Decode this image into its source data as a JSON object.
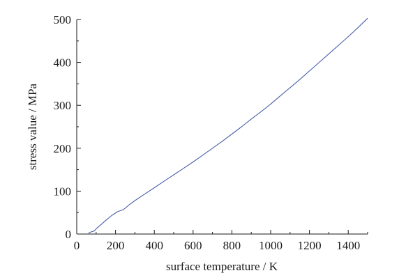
{
  "chart_data": {
    "type": "line",
    "title": "",
    "xlabel": "surface temperature / K",
    "ylabel": "stress value / MPa",
    "xlim": [
      0,
      1500
    ],
    "ylim": [
      0,
      500
    ],
    "xticks": [
      0,
      200,
      400,
      600,
      800,
      1000,
      1200,
      1400
    ],
    "yticks": [
      0,
      100,
      200,
      300,
      400,
      500
    ],
    "xtick_labels": [
      "0",
      "200",
      "400",
      "600",
      "800",
      "1000",
      "1200",
      "1400"
    ],
    "ytick_labels": [
      "0",
      "100",
      "200",
      "300",
      "400",
      "500"
    ],
    "grid": false,
    "series": [
      {
        "color": "#4a5fa8",
        "x": [
          60,
          75,
          90,
          100,
          120,
          150,
          180,
          210,
          240,
          255,
          262,
          270,
          300,
          350,
          400,
          450,
          500,
          550,
          600,
          650,
          700,
          750,
          800,
          850,
          900,
          950,
          1000,
          1050,
          1100,
          1150,
          1200,
          1250,
          1300,
          1350,
          1400,
          1450,
          1500
        ],
        "y": [
          2,
          5,
          7,
          12,
          20,
          32,
          43,
          52,
          57,
          62,
          65,
          68,
          78,
          93,
          108,
          123,
          138,
          153,
          168,
          184,
          200,
          216,
          233,
          250,
          268,
          285,
          303,
          322,
          341,
          360,
          380,
          400,
          420,
          440,
          460,
          481,
          503
        ]
      }
    ]
  }
}
